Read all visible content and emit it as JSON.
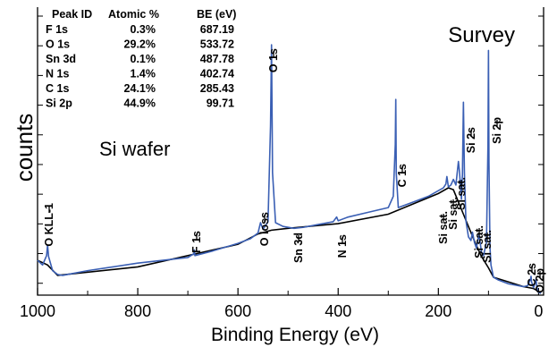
{
  "chart_data": {
    "type": "line",
    "annotation_top_right": "Survey",
    "annotation_left": "Si wafer",
    "xlabel": "Binding Energy  (eV)",
    "ylabel": "counts",
    "xlim": [
      1000,
      -10
    ],
    "x_reversed": true,
    "xticks": [
      1000,
      800,
      600,
      400,
      200,
      0
    ],
    "grid": false,
    "table": {
      "headers": [
        "Peak ID",
        "Atomic %",
        "BE (eV)"
      ],
      "rows": [
        [
          "F 1s",
          "0.3%",
          "687.19"
        ],
        [
          "O 1s",
          "29.2%",
          "533.72"
        ],
        [
          "Sn 3d",
          "0.1%",
          "487.78"
        ],
        [
          "N 1s",
          "1.4%",
          "402.74"
        ],
        [
          "C 1s",
          "24.1%",
          "285.43"
        ],
        [
          "Si 2p",
          "44.9%",
          "99.71"
        ]
      ]
    },
    "peak_labels": [
      {
        "label": "O KLL-1",
        "be": 980
      },
      {
        "label": "F 1s",
        "be": 687
      },
      {
        "label": "O loss",
        "be": 555
      },
      {
        "label": "O 1s",
        "be": 533
      },
      {
        "label": "Sn 3d",
        "be": 488
      },
      {
        "label": "N 1s",
        "be": 403
      },
      {
        "label": "C 1s",
        "be": 285
      },
      {
        "label": "Si sat.",
        "be": 183
      },
      {
        "label": "Si sat.",
        "be": 170
      },
      {
        "label": "Si sat.",
        "be": 160
      },
      {
        "label": "Si 2s",
        "be": 150
      },
      {
        "label": "Si sat.",
        "be": 132
      },
      {
        "label": "Si sat.",
        "be": 119
      },
      {
        "label": "Si 2p",
        "be": 100
      },
      {
        "label": "C 2s",
        "be": 15
      },
      {
        "label": "O 2p",
        "be": 5
      }
    ],
    "series": [
      {
        "color": "#3a5fb4",
        "x": [
          1000,
          990,
          982,
          980,
          978,
          970,
          960,
          950,
          900,
          850,
          800,
          750,
          700,
          688,
          687,
          686,
          650,
          600,
          575,
          560,
          555,
          550,
          540,
          535,
          533,
          531,
          525,
          510,
          488,
          470,
          440,
          410,
          403,
          400,
          380,
          340,
          300,
          290,
          286,
          285,
          284,
          280,
          250,
          220,
          200,
          190,
          185,
          183,
          180,
          175,
          170,
          165,
          160,
          158,
          154,
          152,
          150,
          148,
          145,
          140,
          135,
          132,
          128,
          124,
          119,
          114,
          110,
          104,
          101,
          100,
          99,
          97,
          95,
          90,
          80,
          60,
          40,
          30,
          22,
          16,
          15,
          14,
          10,
          6,
          5,
          4,
          2,
          0,
          -5
        ],
        "y": [
          3.7,
          3.2,
          4.2,
          5.3,
          4.1,
          2.6,
          2.2,
          2.1,
          2.6,
          3.0,
          3.4,
          3.7,
          4.0,
          4.4,
          4.8,
          4.2,
          4.7,
          5.5,
          6.0,
          6.6,
          7.7,
          7.0,
          7.8,
          18,
          26.6,
          13,
          7.7,
          7.3,
          7.1,
          7.2,
          7.5,
          7.8,
          8.3,
          7.9,
          8.3,
          8.8,
          9.3,
          10.5,
          16,
          20.8,
          13,
          9.3,
          9.9,
          10.5,
          11.1,
          11.4,
          11.8,
          12.6,
          11.5,
          11.7,
          12.3,
          11.7,
          14.2,
          13.2,
          10.2,
          12.8,
          20.5,
          13,
          7.9,
          6.2,
          5.8,
          6.7,
          5.6,
          5.0,
          6.5,
          4.6,
          4.2,
          5.6,
          16,
          26.0,
          14,
          5.1,
          3.2,
          1.9,
          1.6,
          1.2,
          1.0,
          0.9,
          1.0,
          1.7,
          2.0,
          1.4,
          0.8,
          1.5,
          1.7,
          1.1,
          0.5,
          0.3,
          0.2
        ]
      }
    ],
    "background_line": {
      "color": "#000000",
      "x": [
        1000,
        980,
        960,
        800,
        600,
        560,
        533,
        500,
        400,
        300,
        200,
        180,
        170,
        150,
        130,
        115,
        100,
        90,
        60,
        30,
        10,
        0
      ],
      "y": [
        3.7,
        3.2,
        2.1,
        3.0,
        5.4,
        6.5,
        6.9,
        7.1,
        7.6,
        8.6,
        10.8,
        11.4,
        11.2,
        8.6,
        6.0,
        4.2,
        2.9,
        1.9,
        1.4,
        0.9,
        0.7,
        0.4
      ]
    }
  }
}
